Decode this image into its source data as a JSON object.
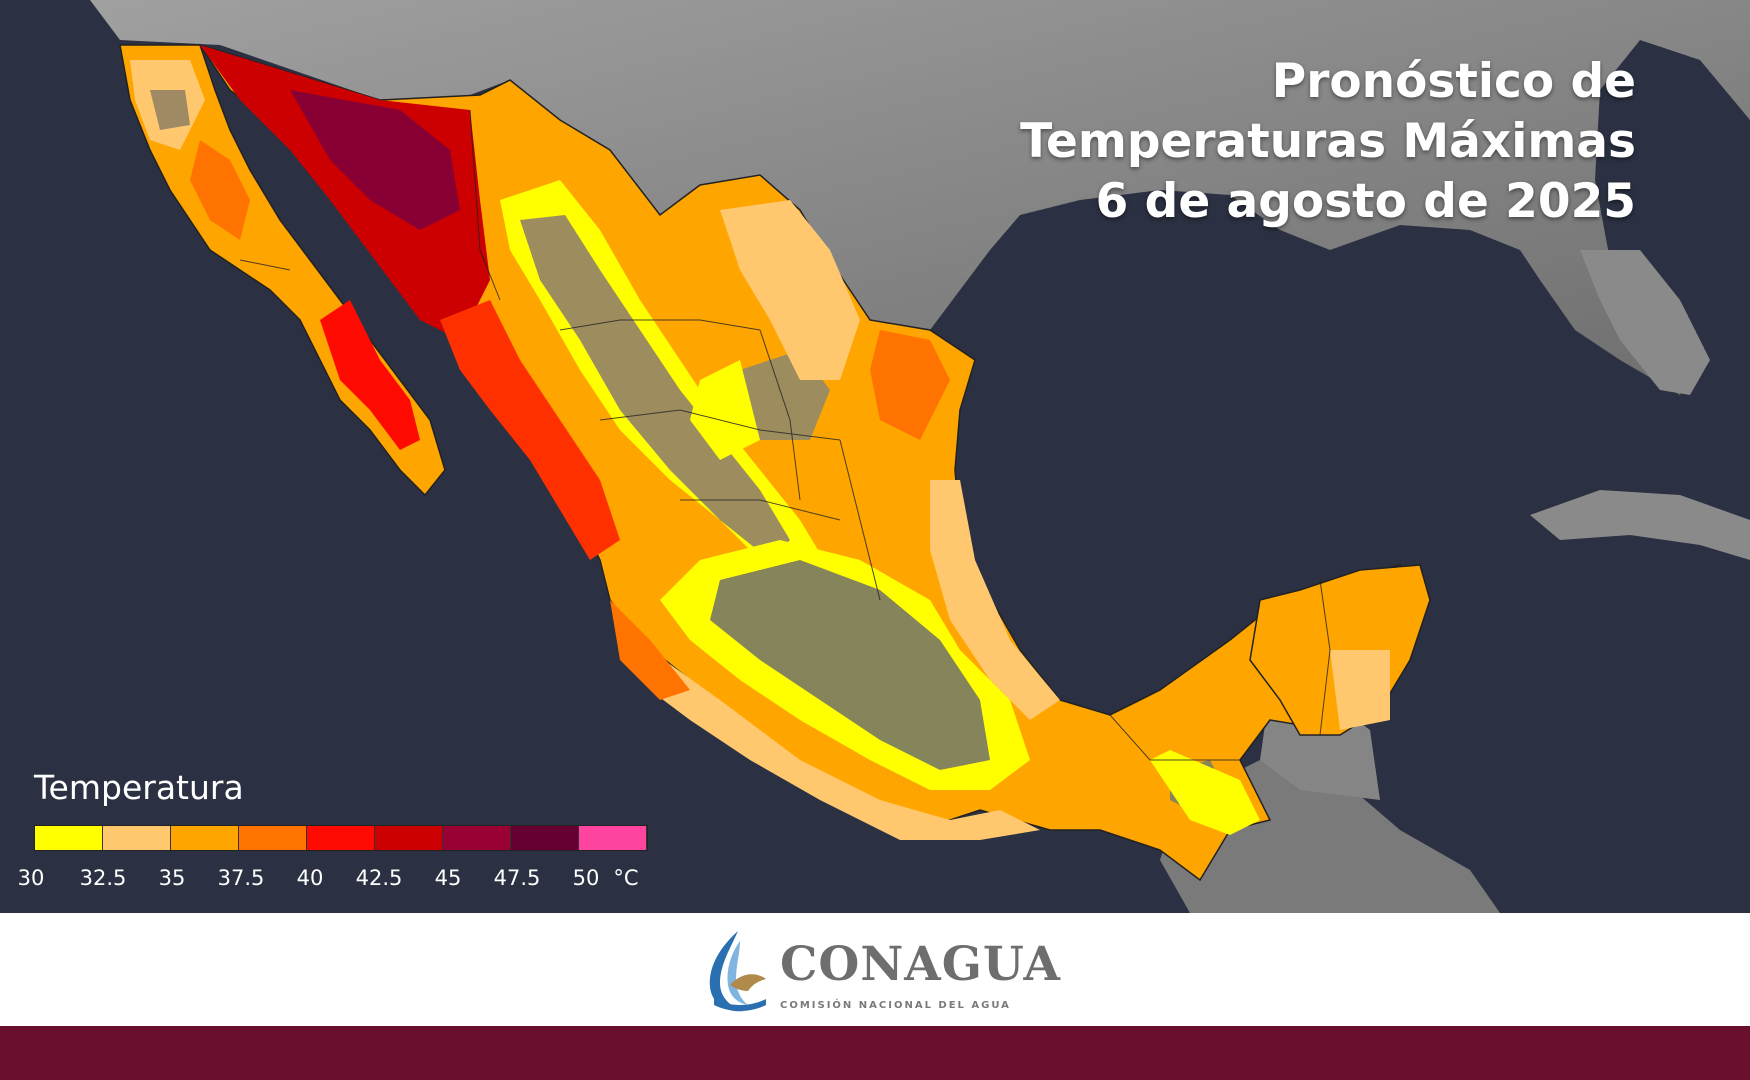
{
  "title": {
    "line1": "Pronóstico de",
    "line2": "Temperaturas Máximas",
    "line3": "6 de agosto de 2025"
  },
  "legend": {
    "title": "Temperatura",
    "colors": [
      "#ffff00",
      "#ffc86e",
      "#ffa500",
      "#ff7300",
      "#ff0a00",
      "#cc0000",
      "#990033",
      "#660033",
      "#ff44a0"
    ],
    "ticks": [
      "30",
      "32.5",
      "35",
      "37.5",
      "40",
      "42.5",
      "45",
      "47.5",
      "50"
    ],
    "unit": "°C"
  },
  "logo": {
    "name": "CONAGUA",
    "subtitle": "COMISIÓN NACIONAL DEL AGUA"
  },
  "colors": {
    "ocean": "#2a2f40",
    "land": "#8c8c8c",
    "footer_band": "#6b0f2e"
  }
}
